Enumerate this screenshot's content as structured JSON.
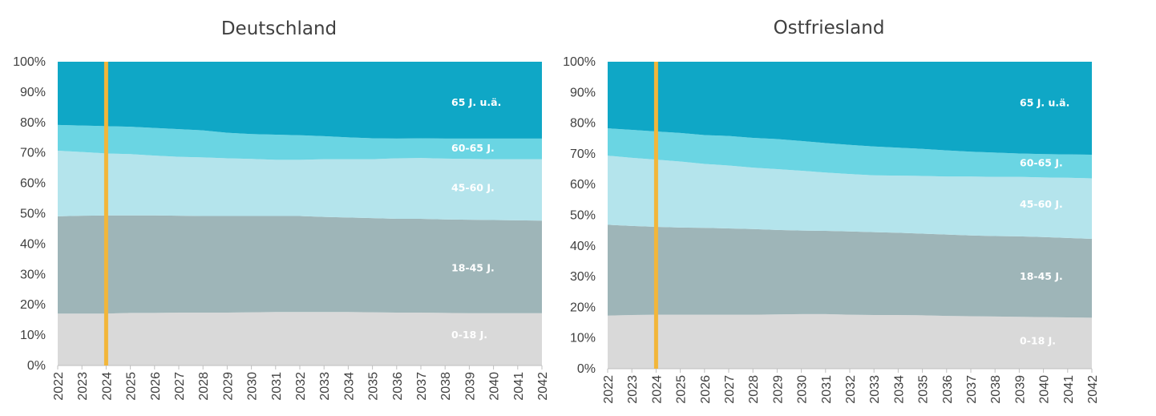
{
  "colors": {
    "band_0_18": "#d9d9d9",
    "band_18_45": "#9eb5b8",
    "band_45_60": "#b4e4ec",
    "band_60_65": "#6ad5e3",
    "band_65plus": "#0fa7c6",
    "marker": "#f2b63a",
    "axis": "#bfbfbf",
    "text": "#404040"
  },
  "chart_data": [
    {
      "type": "area",
      "stacked": true,
      "percent": true,
      "title": "Deutschland",
      "x": [
        "2022",
        "2023",
        "2024",
        "2025",
        "2026",
        "2027",
        "2028",
        "2029",
        "2030",
        "2031",
        "2032",
        "2033",
        "2034",
        "2035",
        "2036",
        "2037",
        "2038",
        "2039",
        "2040",
        "2041",
        "2042"
      ],
      "ylim": [
        0,
        100
      ],
      "yticks": [
        "0%",
        "10%",
        "20%",
        "30%",
        "40%",
        "50%",
        "60%",
        "70%",
        "80%",
        "90%",
        "100%"
      ],
      "marker_year": "2024",
      "series": [
        {
          "name": "0-18 J.",
          "color_key": "band_0_18",
          "label_year_index": 16.5,
          "label_value": 10,
          "values": [
            17.1,
            17.1,
            17.1,
            17.3,
            17.3,
            17.4,
            17.4,
            17.4,
            17.5,
            17.6,
            17.6,
            17.6,
            17.6,
            17.5,
            17.4,
            17.4,
            17.3,
            17.2,
            17.2,
            17.2,
            17.2
          ]
        },
        {
          "name": "18-45 J.",
          "color_key": "band_18_45",
          "label_year_index": 16.5,
          "label_value": 32,
          "values": [
            32.0,
            32.2,
            32.3,
            32.1,
            32.1,
            31.9,
            31.8,
            31.8,
            31.7,
            31.6,
            31.6,
            31.3,
            31.1,
            31.0,
            30.9,
            30.9,
            30.8,
            30.8,
            30.7,
            30.6,
            30.5
          ]
        },
        {
          "name": "45-60 J.",
          "color_key": "band_45_60",
          "label_year_index": 16.5,
          "label_value": 58.5,
          "values": [
            21.6,
            21.0,
            20.4,
            20.2,
            19.7,
            19.4,
            19.3,
            19.0,
            18.8,
            18.5,
            18.5,
            19.0,
            19.2,
            19.4,
            19.9,
            20.0,
            20.0,
            20.0,
            20.0,
            20.1,
            20.2
          ]
        },
        {
          "name": "60-65 J.",
          "color_key": "band_60_65",
          "label_year_index": 16.5,
          "label_value": 71.5,
          "values": [
            8.5,
            8.7,
            9.0,
            9.0,
            9.1,
            9.1,
            8.9,
            8.4,
            8.2,
            8.3,
            8.1,
            7.6,
            7.2,
            6.9,
            6.5,
            6.5,
            6.6,
            6.7,
            6.8,
            6.8,
            6.8
          ]
        },
        {
          "name": "65 J. u.ä.",
          "color_key": "band_65plus",
          "label_year_index": 16.5,
          "label_value": 86.5,
          "values": [
            20.8,
            21.0,
            21.2,
            21.4,
            21.8,
            22.2,
            22.6,
            23.4,
            23.8,
            24.0,
            24.2,
            24.5,
            24.9,
            25.2,
            25.3,
            25.2,
            25.3,
            25.3,
            25.3,
            25.3,
            25.3
          ]
        }
      ]
    },
    {
      "type": "area",
      "stacked": true,
      "percent": true,
      "title": "Ostfriesland",
      "x": [
        "2022",
        "2023",
        "2024",
        "2025",
        "2026",
        "2027",
        "2028",
        "2029",
        "2030",
        "2031",
        "2032",
        "2033",
        "2034",
        "2035",
        "2036",
        "2037",
        "2038",
        "2039",
        "2040",
        "2041",
        "2042"
      ],
      "ylim": [
        0,
        100
      ],
      "yticks": [
        "0%",
        "10%",
        "20%",
        "30%",
        "40%",
        "50%",
        "60%",
        "70%",
        "80%",
        "90%",
        "100%"
      ],
      "marker_year": "2024",
      "series": [
        {
          "name": "0-18 J.",
          "color_key": "band_0_18",
          "label_year_index": 17.5,
          "label_value": 9,
          "values": [
            17.3,
            17.5,
            17.6,
            17.6,
            17.6,
            17.6,
            17.6,
            17.7,
            17.8,
            17.8,
            17.6,
            17.5,
            17.5,
            17.4,
            17.2,
            17.1,
            17.0,
            16.9,
            16.8,
            16.7,
            16.6
          ]
        },
        {
          "name": "18-45 J.",
          "color_key": "band_18_45",
          "label_year_index": 17.5,
          "label_value": 30,
          "values": [
            29.6,
            29.0,
            28.6,
            28.4,
            28.3,
            28.1,
            27.9,
            27.5,
            27.2,
            27.1,
            27.1,
            27.0,
            26.8,
            26.6,
            26.5,
            26.3,
            26.2,
            26.2,
            26.1,
            25.9,
            25.7
          ]
        },
        {
          "name": "45-60 J.",
          "color_key": "band_45_60",
          "label_year_index": 17.5,
          "label_value": 53.5,
          "values": [
            22.5,
            22.2,
            21.9,
            21.5,
            20.8,
            20.5,
            20.0,
            19.8,
            19.5,
            19.0,
            18.7,
            18.5,
            18.6,
            18.8,
            18.9,
            19.2,
            19.3,
            19.4,
            19.4,
            19.6,
            19.7
          ]
        },
        {
          "name": "60-65 J.",
          "color_key": "band_60_65",
          "label_year_index": 17.5,
          "label_value": 67,
          "values": [
            8.9,
            9.1,
            9.2,
            9.3,
            9.4,
            9.6,
            9.7,
            9.8,
            9.7,
            9.6,
            9.5,
            9.4,
            9.1,
            8.8,
            8.5,
            8.1,
            7.9,
            7.6,
            7.6,
            7.6,
            7.7
          ]
        },
        {
          "name": "65 J. u.ä.",
          "color_key": "band_65plus",
          "label_year_index": 17.5,
          "label_value": 86.5,
          "values": [
            21.7,
            22.2,
            22.7,
            23.2,
            23.9,
            24.2,
            24.8,
            25.2,
            25.8,
            26.5,
            27.1,
            27.6,
            28.0,
            28.4,
            28.9,
            29.3,
            29.6,
            29.9,
            30.1,
            30.2,
            30.3
          ]
        }
      ]
    }
  ]
}
